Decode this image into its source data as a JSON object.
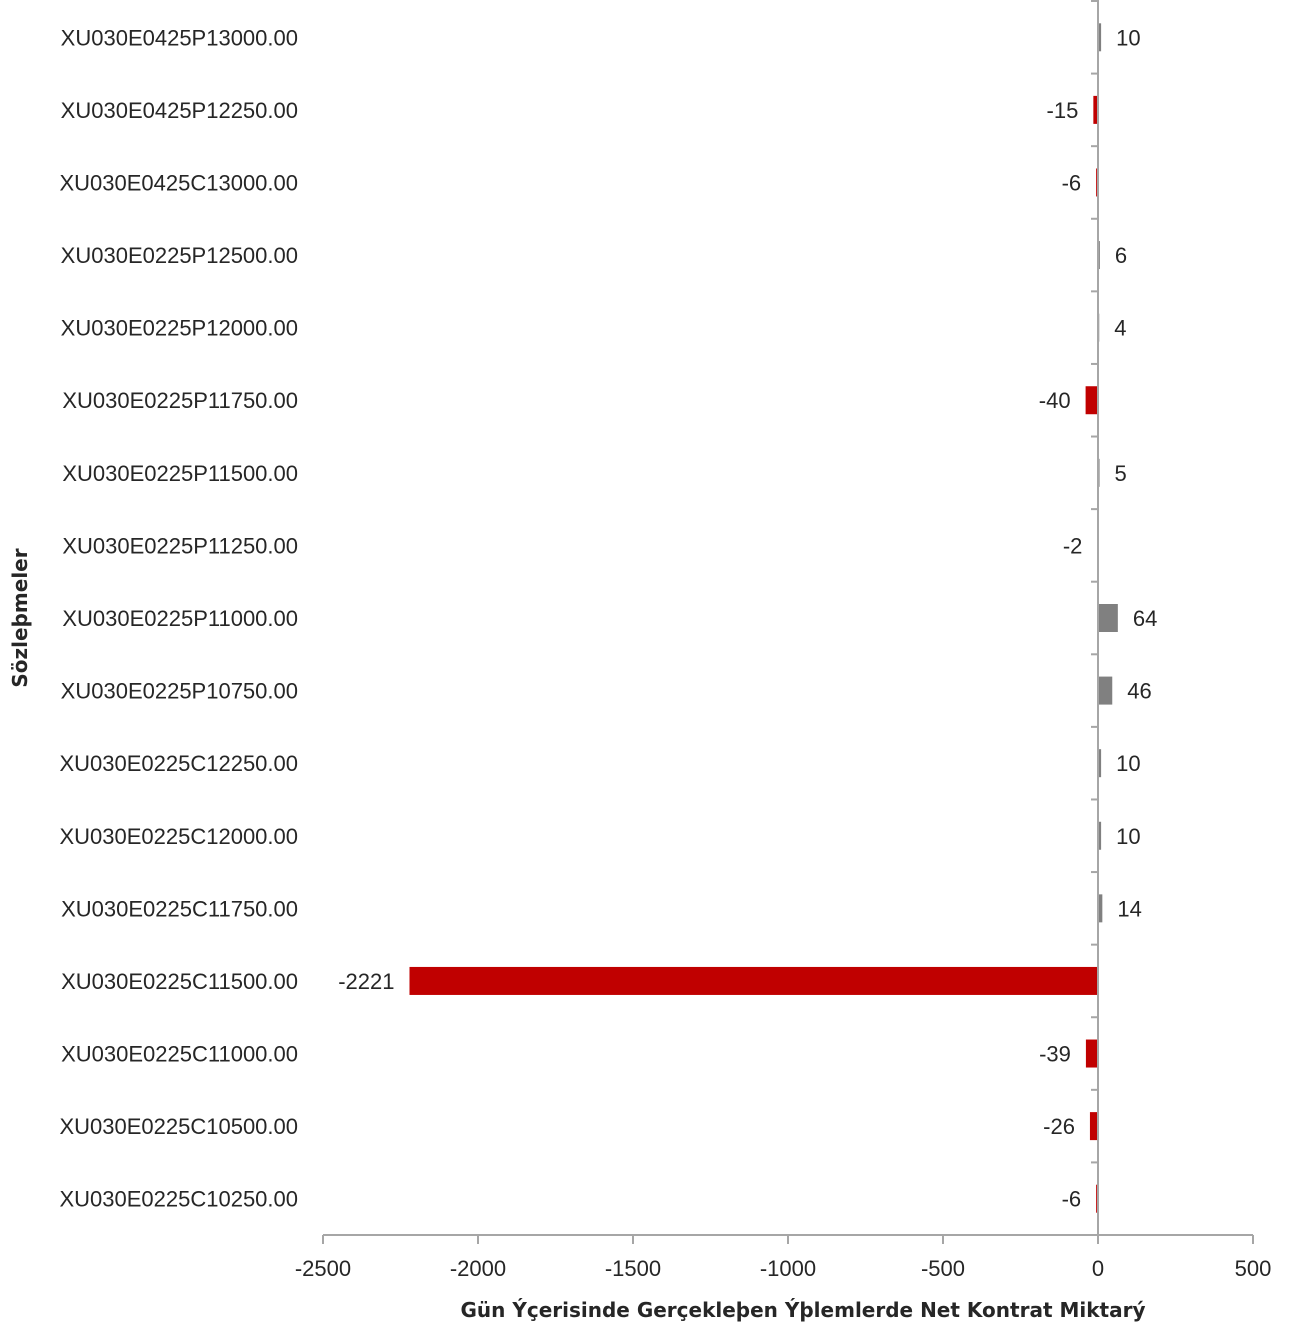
{
  "chart_data": {
    "type": "bar",
    "orientation": "horizontal",
    "xlabel": "Gün Ýçerisinde Gerçekleþen Ýþlemlerde Net Kontrat Miktarý",
    "ylabel": "Sözleþmeler",
    "xlim": [
      -2500,
      500
    ],
    "xticks": [
      "-2500",
      "-2000",
      "-1500",
      "-1000",
      "-500",
      "0",
      "500"
    ],
    "grid": false,
    "colors": {
      "positive": "#808080",
      "negative": "#c00000",
      "axis": "#a6a6a6"
    },
    "categories": [
      "XU030E0425P13000.00",
      "XU030E0425P12250.00",
      "XU030E0425C13000.00",
      "XU030E0225P12500.00",
      "XU030E0225P12000.00",
      "XU030E0225P11750.00",
      "XU030E0225P11500.00",
      "XU030E0225P11250.00",
      "XU030E0225P11000.00",
      "XU030E0225P10750.00",
      "XU030E0225C12250.00",
      "XU030E0225C12000.00",
      "XU030E0225C11750.00",
      "XU030E0225C11500.00",
      "XU030E0225C11000.00",
      "XU030E0225C10500.00",
      "XU030E0225C10250.00"
    ],
    "values": [
      10,
      -15,
      -6,
      6,
      4,
      -40,
      5,
      -2,
      64,
      46,
      10,
      10,
      14,
      -2221,
      -39,
      -26,
      -6
    ]
  }
}
